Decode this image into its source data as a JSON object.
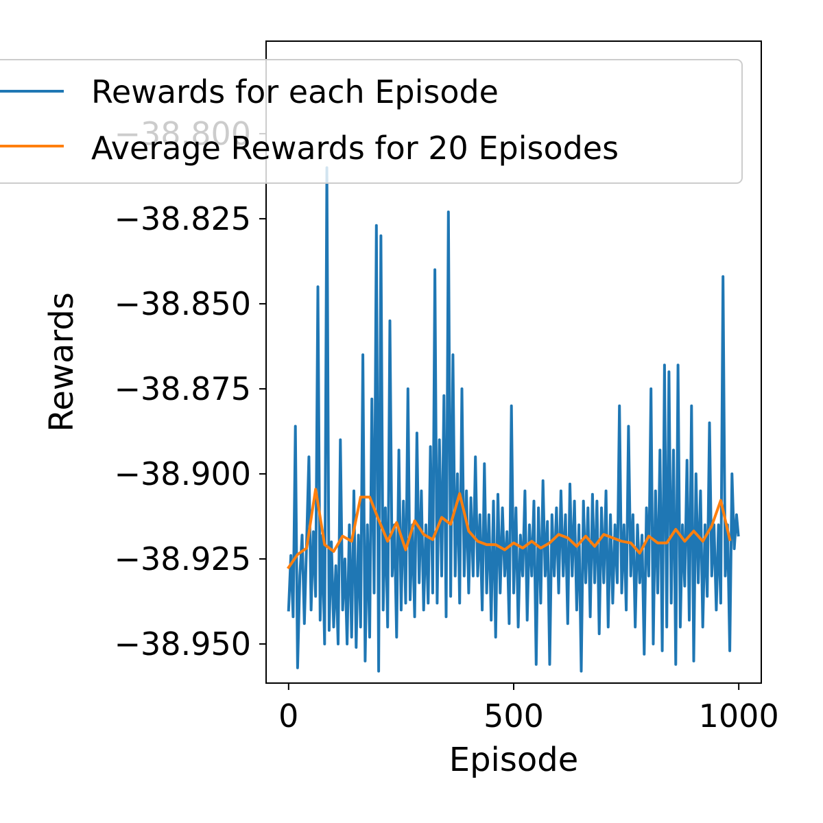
{
  "chart_data": {
    "type": "line",
    "title": "",
    "xlabel": "Episode",
    "ylabel": "Rewards",
    "xlim": [
      -50,
      1050
    ],
    "ylim": [
      -38.9615,
      -38.7728
    ],
    "xticks": [
      0,
      500,
      1000
    ],
    "xtick_labels": [
      "0",
      "500",
      "1000"
    ],
    "yticks": [
      -38.95,
      -38.925,
      -38.9,
      -38.875,
      -38.85,
      -38.825,
      -38.8
    ],
    "ytick_labels": [
      "−38.950",
      "−38.925",
      "−38.900",
      "−38.875",
      "−38.850",
      "−38.825",
      "−38.800"
    ],
    "grid": false,
    "legend_position": "upper-left",
    "series": [
      {
        "name": "Rewards for each Episode",
        "color": "#1f77b4",
        "x": [
          0,
          5,
          10,
          15,
          20,
          25,
          30,
          35,
          40,
          45,
          50,
          55,
          60,
          65,
          70,
          75,
          80,
          85,
          90,
          95,
          100,
          105,
          110,
          115,
          120,
          125,
          130,
          135,
          140,
          145,
          150,
          155,
          160,
          165,
          170,
          175,
          180,
          185,
          190,
          195,
          200,
          205,
          210,
          215,
          220,
          225,
          230,
          235,
          240,
          245,
          250,
          255,
          260,
          265,
          270,
          275,
          280,
          285,
          290,
          295,
          300,
          305,
          310,
          315,
          320,
          325,
          330,
          335,
          340,
          345,
          350,
          355,
          360,
          365,
          370,
          375,
          380,
          385,
          390,
          395,
          400,
          405,
          410,
          415,
          420,
          425,
          430,
          435,
          440,
          445,
          450,
          455,
          460,
          465,
          470,
          475,
          480,
          485,
          490,
          495,
          500,
          505,
          510,
          515,
          520,
          525,
          530,
          535,
          540,
          545,
          550,
          555,
          560,
          565,
          570,
          575,
          580,
          585,
          590,
          595,
          600,
          605,
          610,
          615,
          620,
          625,
          630,
          635,
          640,
          645,
          650,
          655,
          660,
          665,
          670,
          675,
          680,
          685,
          690,
          695,
          700,
          705,
          710,
          715,
          720,
          725,
          730,
          735,
          740,
          745,
          750,
          755,
          760,
          765,
          770,
          775,
          780,
          785,
          790,
          795,
          800,
          805,
          810,
          815,
          820,
          825,
          830,
          835,
          840,
          845,
          850,
          855,
          860,
          865,
          870,
          875,
          880,
          885,
          890,
          895,
          900,
          905,
          910,
          915,
          920,
          925,
          930,
          935,
          940,
          945,
          950,
          955,
          960,
          965,
          970,
          975,
          980,
          985,
          990,
          995,
          999
        ],
        "y": [
          -38.94,
          -38.924,
          -38.942,
          -38.886,
          -38.957,
          -38.93,
          -38.918,
          -38.944,
          -38.92,
          -38.895,
          -38.94,
          -38.917,
          -38.936,
          -38.845,
          -38.943,
          -38.918,
          -38.95,
          -38.81,
          -38.946,
          -38.92,
          -38.945,
          -38.927,
          -38.95,
          -38.89,
          -38.94,
          -38.925,
          -38.95,
          -38.915,
          -38.948,
          -38.905,
          -38.951,
          -38.918,
          -38.945,
          -38.865,
          -38.955,
          -38.915,
          -38.948,
          -38.878,
          -38.935,
          -38.827,
          -38.958,
          -38.83,
          -38.94,
          -38.91,
          -38.945,
          -38.855,
          -38.93,
          -38.915,
          -38.948,
          -38.893,
          -38.94,
          -38.908,
          -38.938,
          -38.875,
          -38.937,
          -38.915,
          -38.942,
          -38.888,
          -38.932,
          -38.905,
          -38.94,
          -38.915,
          -38.938,
          -38.892,
          -38.935,
          -38.84,
          -38.938,
          -38.89,
          -38.93,
          -38.877,
          -38.942,
          -38.823,
          -38.936,
          -38.865,
          -38.93,
          -38.9,
          -38.938,
          -38.875,
          -38.93,
          -38.905,
          -38.935,
          -38.907,
          -38.93,
          -38.895,
          -38.93,
          -38.912,
          -38.94,
          -38.897,
          -38.935,
          -38.912,
          -38.943,
          -38.908,
          -38.948,
          -38.906,
          -38.935,
          -38.91,
          -38.93,
          -38.917,
          -38.944,
          -38.88,
          -38.935,
          -38.91,
          -38.945,
          -38.918,
          -38.93,
          -38.905,
          -38.943,
          -38.915,
          -38.93,
          -38.908,
          -38.956,
          -38.91,
          -38.938,
          -38.902,
          -38.93,
          -38.914,
          -38.956,
          -38.912,
          -38.93,
          -38.91,
          -38.935,
          -38.905,
          -38.93,
          -38.912,
          -38.944,
          -38.903,
          -38.93,
          -38.908,
          -38.94,
          -38.915,
          -38.958,
          -38.908,
          -38.932,
          -38.91,
          -38.942,
          -38.906,
          -38.932,
          -38.908,
          -38.947,
          -38.91,
          -38.932,
          -38.905,
          -38.945,
          -38.912,
          -38.938,
          -38.915,
          -38.932,
          -38.88,
          -38.935,
          -38.915,
          -38.94,
          -38.886,
          -38.93,
          -38.912,
          -38.945,
          -38.915,
          -38.932,
          -38.918,
          -38.953,
          -38.91,
          -38.93,
          -38.875,
          -38.95,
          -38.905,
          -38.935,
          -38.893,
          -38.952,
          -38.868,
          -38.945,
          -38.87,
          -38.938,
          -38.893,
          -38.956,
          -38.868,
          -38.945,
          -38.915,
          -38.933,
          -38.896,
          -38.943,
          -38.88,
          -38.955,
          -38.9,
          -38.932,
          -38.905,
          -38.945,
          -38.915,
          -38.936,
          -38.885,
          -38.93,
          -38.915,
          -38.94,
          -38.915,
          -38.938,
          -38.842,
          -38.93,
          -38.915,
          -38.952,
          -38.9,
          -38.922,
          -38.912,
          -38.918
        ]
      },
      {
        "name": "Average Rewards for 20 Episodes",
        "color": "#ff7f0e",
        "x": [
          0,
          20,
          40,
          60,
          80,
          100,
          120,
          140,
          160,
          180,
          200,
          220,
          240,
          260,
          280,
          300,
          320,
          340,
          360,
          380,
          400,
          420,
          440,
          460,
          480,
          500,
          520,
          540,
          560,
          580,
          600,
          620,
          640,
          660,
          680,
          700,
          720,
          740,
          760,
          780,
          800,
          820,
          840,
          860,
          880,
          900,
          920,
          940,
          960,
          980
        ],
        "y": [
          -38.9275,
          -38.9237,
          -38.9218,
          -38.9045,
          -38.9208,
          -38.9228,
          -38.9183,
          -38.9198,
          -38.9068,
          -38.9068,
          -38.9135,
          -38.9198,
          -38.9143,
          -38.9223,
          -38.9138,
          -38.9178,
          -38.9193,
          -38.9128,
          -38.9148,
          -38.9058,
          -38.9168,
          -38.9198,
          -38.9208,
          -38.9208,
          -38.9223,
          -38.9203,
          -38.9218,
          -38.9198,
          -38.9218,
          -38.9203,
          -38.9178,
          -38.9188,
          -38.9213,
          -38.9183,
          -38.9213,
          -38.9178,
          -38.9188,
          -38.9198,
          -38.9203,
          -38.9233,
          -38.9183,
          -38.9203,
          -38.9203,
          -38.9163,
          -38.9198,
          -38.9168,
          -38.9198,
          -38.9153,
          -38.9078,
          -38.9193
        ]
      }
    ]
  }
}
